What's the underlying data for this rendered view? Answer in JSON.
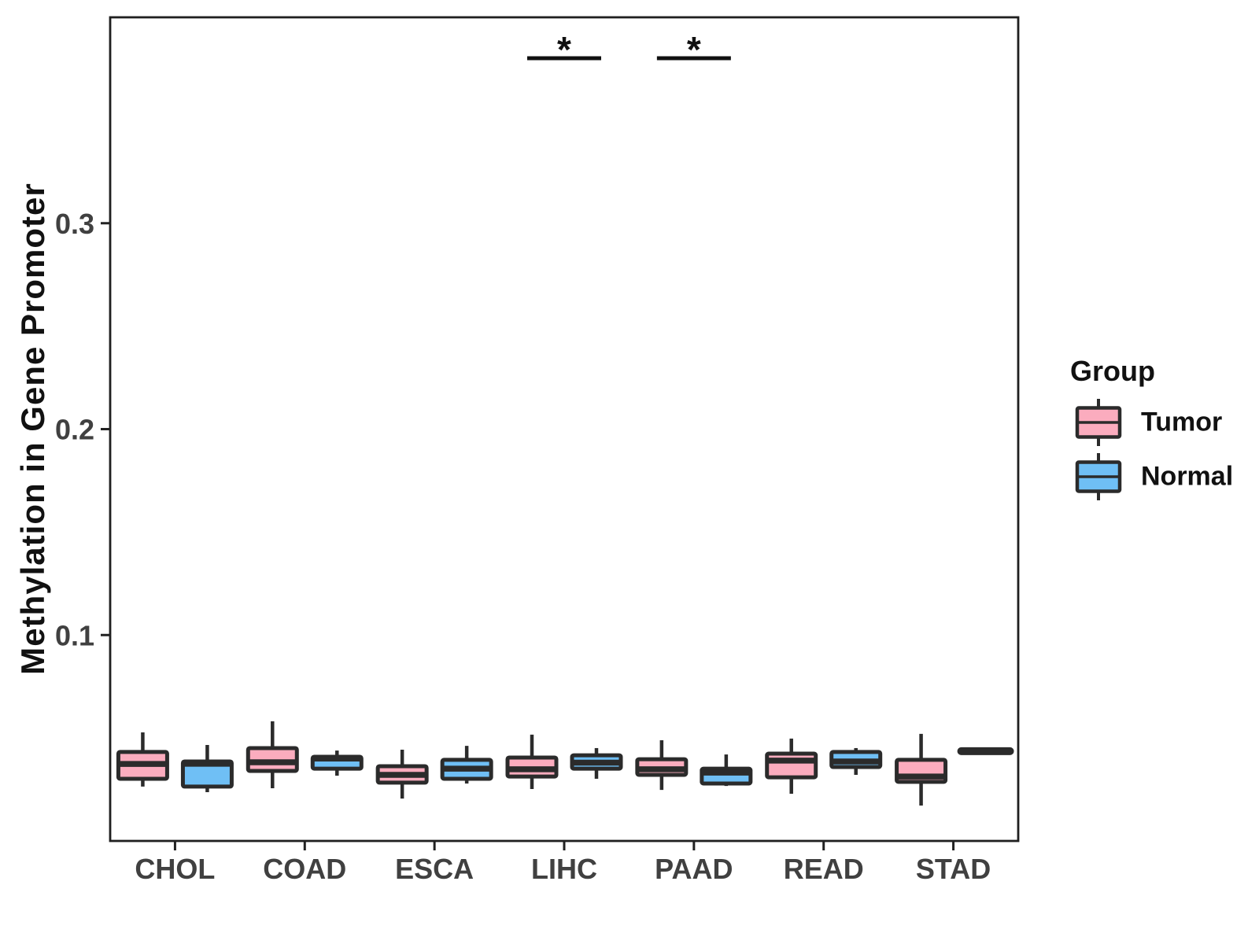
{
  "chart_data": {
    "type": "boxplot",
    "title": "",
    "xlabel": "",
    "ylabel": "Methylation in Gene Promoter",
    "categories": [
      "CHOL",
      "COAD",
      "ESCA",
      "LIHC",
      "PAAD",
      "READ",
      "STAD"
    ],
    "ylim": [
      0,
      0.4
    ],
    "yticks": [
      {
        "value": 0.1,
        "label": "0.1"
      },
      {
        "value": 0.2,
        "label": "0.2"
      },
      {
        "value": 0.3,
        "label": "0.3"
      }
    ],
    "grid": false,
    "legend": {
      "title": "Group",
      "position": "right",
      "entries": [
        {
          "label": "Tumor",
          "color": "#FBACBE"
        },
        {
          "label": "Normal",
          "color": "#6FBFF5"
        }
      ]
    },
    "series": [
      {
        "name": "Tumor",
        "color": "#FBACBE",
        "boxes": [
          {
            "low": 0.0264,
            "q1": 0.0302,
            "median": 0.0374,
            "q3": 0.0432,
            "high": 0.0527
          },
          {
            "low": 0.0256,
            "q1": 0.034,
            "median": 0.0382,
            "q3": 0.0451,
            "high": 0.0581
          },
          {
            "low": 0.0206,
            "q1": 0.0283,
            "median": 0.0321,
            "q3": 0.0363,
            "high": 0.0443
          },
          {
            "low": 0.0252,
            "q1": 0.0313,
            "median": 0.0348,
            "q3": 0.0405,
            "high": 0.0516
          },
          {
            "low": 0.0248,
            "q1": 0.0321,
            "median": 0.0348,
            "q3": 0.0397,
            "high": 0.0489
          },
          {
            "low": 0.0229,
            "q1": 0.0309,
            "median": 0.039,
            "q3": 0.0424,
            "high": 0.0497
          },
          {
            "low": 0.0172,
            "q1": 0.0287,
            "median": 0.0313,
            "q3": 0.0394,
            "high": 0.052
          }
        ]
      },
      {
        "name": "Normal",
        "color": "#6FBFF5",
        "boxes": [
          {
            "low": 0.0237,
            "q1": 0.0264,
            "median": 0.0375,
            "q3": 0.0386,
            "high": 0.0466
          },
          {
            "low": 0.0317,
            "q1": 0.0351,
            "median": 0.04,
            "q3": 0.0409,
            "high": 0.0439
          },
          {
            "low": 0.0279,
            "q1": 0.0302,
            "median": 0.0351,
            "q3": 0.0394,
            "high": 0.0462
          },
          {
            "low": 0.0302,
            "q1": 0.0351,
            "median": 0.038,
            "q3": 0.0416,
            "high": 0.0451
          },
          {
            "low": 0.0267,
            "q1": 0.0279,
            "median": 0.0332,
            "q3": 0.0351,
            "high": 0.042
          },
          {
            "low": 0.0321,
            "q1": 0.0359,
            "median": 0.0386,
            "q3": 0.0432,
            "high": 0.0451
          },
          {
            "low": 0.0436,
            "q1": 0.0436,
            "median": 0.0436,
            "q3": 0.0436,
            "high": 0.0436
          }
        ]
      }
    ],
    "significance": [
      {
        "category": "LIHC",
        "label": "*"
      },
      {
        "category": "PAAD",
        "label": "*"
      }
    ],
    "style": {
      "box_border": "#2B2B2B",
      "panel_border": "#1F1F1F",
      "axis_tick_color": "#222222",
      "tick_label_color": "#404040",
      "sig_color": "#111111"
    }
  }
}
